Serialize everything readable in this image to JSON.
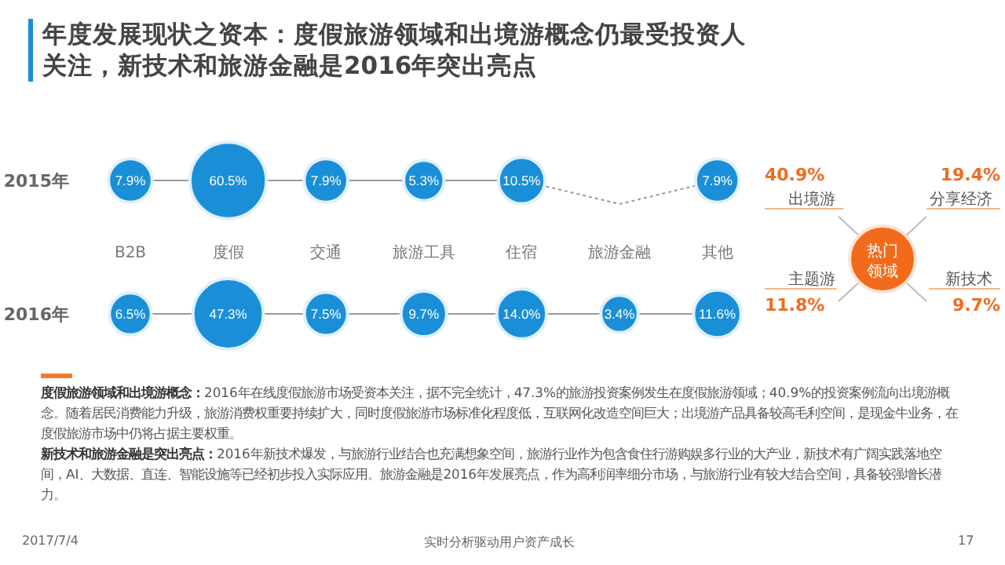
{
  "chart_data": [
    {
      "type": "other",
      "title": "年度发展现状之资本：度假旅游领域和出境游概念仍最受投资人关注，新技术和旅游金融是2016年突出亮点",
      "categories": [
        "B2B",
        "度假",
        "交通",
        "旅游工具",
        "住宿",
        "旅游金融",
        "其他"
      ],
      "series": [
        {
          "name": "2015年",
          "color": "#1a8fd8",
          "values": [
            7.9,
            60.5,
            7.9,
            5.3,
            10.5,
            null,
            7.9
          ],
          "value_labels": [
            "7.9%",
            "60.5%",
            "7.9%",
            "5.3%",
            "10.5%",
            null,
            "7.9%"
          ]
        },
        {
          "name": "2016年",
          "color": "#1a8fd8",
          "values": [
            6.5,
            47.3,
            7.5,
            9.7,
            14.0,
            3.4,
            11.6
          ],
          "value_labels": [
            "6.5%",
            "47.3%",
            "7.5%",
            "9.7%",
            "14.0%",
            "3.4%",
            "11.6%"
          ]
        }
      ],
      "annotations": [
        "度假旅游领域和出境游概念：",
        "2016年在线度假旅游市场受资本关注，据不完全统计，47.3%的旅游投资案例发生在度假旅游领域；40.9%的投资案例流向出境游概念。随着居民消费能力升级，旅游消费权重要持续扩大，同时度假旅游市场标准化程度低，互联网化改造空间巨大；出境游产品具备较高毛利空间，是现金牛业务，在度假旅游市场中仍将占据主要权重。",
        "新技术和旅游金融是突出亮点：",
        "2016年新技术爆发，与旅游行业结合也充满想象空间，旅游行业作为包含食住行游购娱多行业的大产业，新技术有广阔实践落地空间，AI、大数据、直连、智能设施等已经初步投入实际应用。旅游金融是2016年发展亮点，作为高利润率细分市场，与旅游行业有较大结合空间，具备较强增长潜力。",
        "2017/7/4",
        "实时分析驱动用户资产成长",
        "17"
      ]
    },
    {
      "type": "other",
      "categories": [
        "出境游",
        "分享经济",
        "主题游",
        "新技术"
      ],
      "values": [
        40.9,
        19.4,
        11.8,
        9.7
      ],
      "color": "#f26b1d",
      "value_labels": [
        "40.9%",
        "19.4%",
        "11.8%",
        "9.7%"
      ],
      "annotations": [
        "热门领域"
      ]
    }
  ]
}
